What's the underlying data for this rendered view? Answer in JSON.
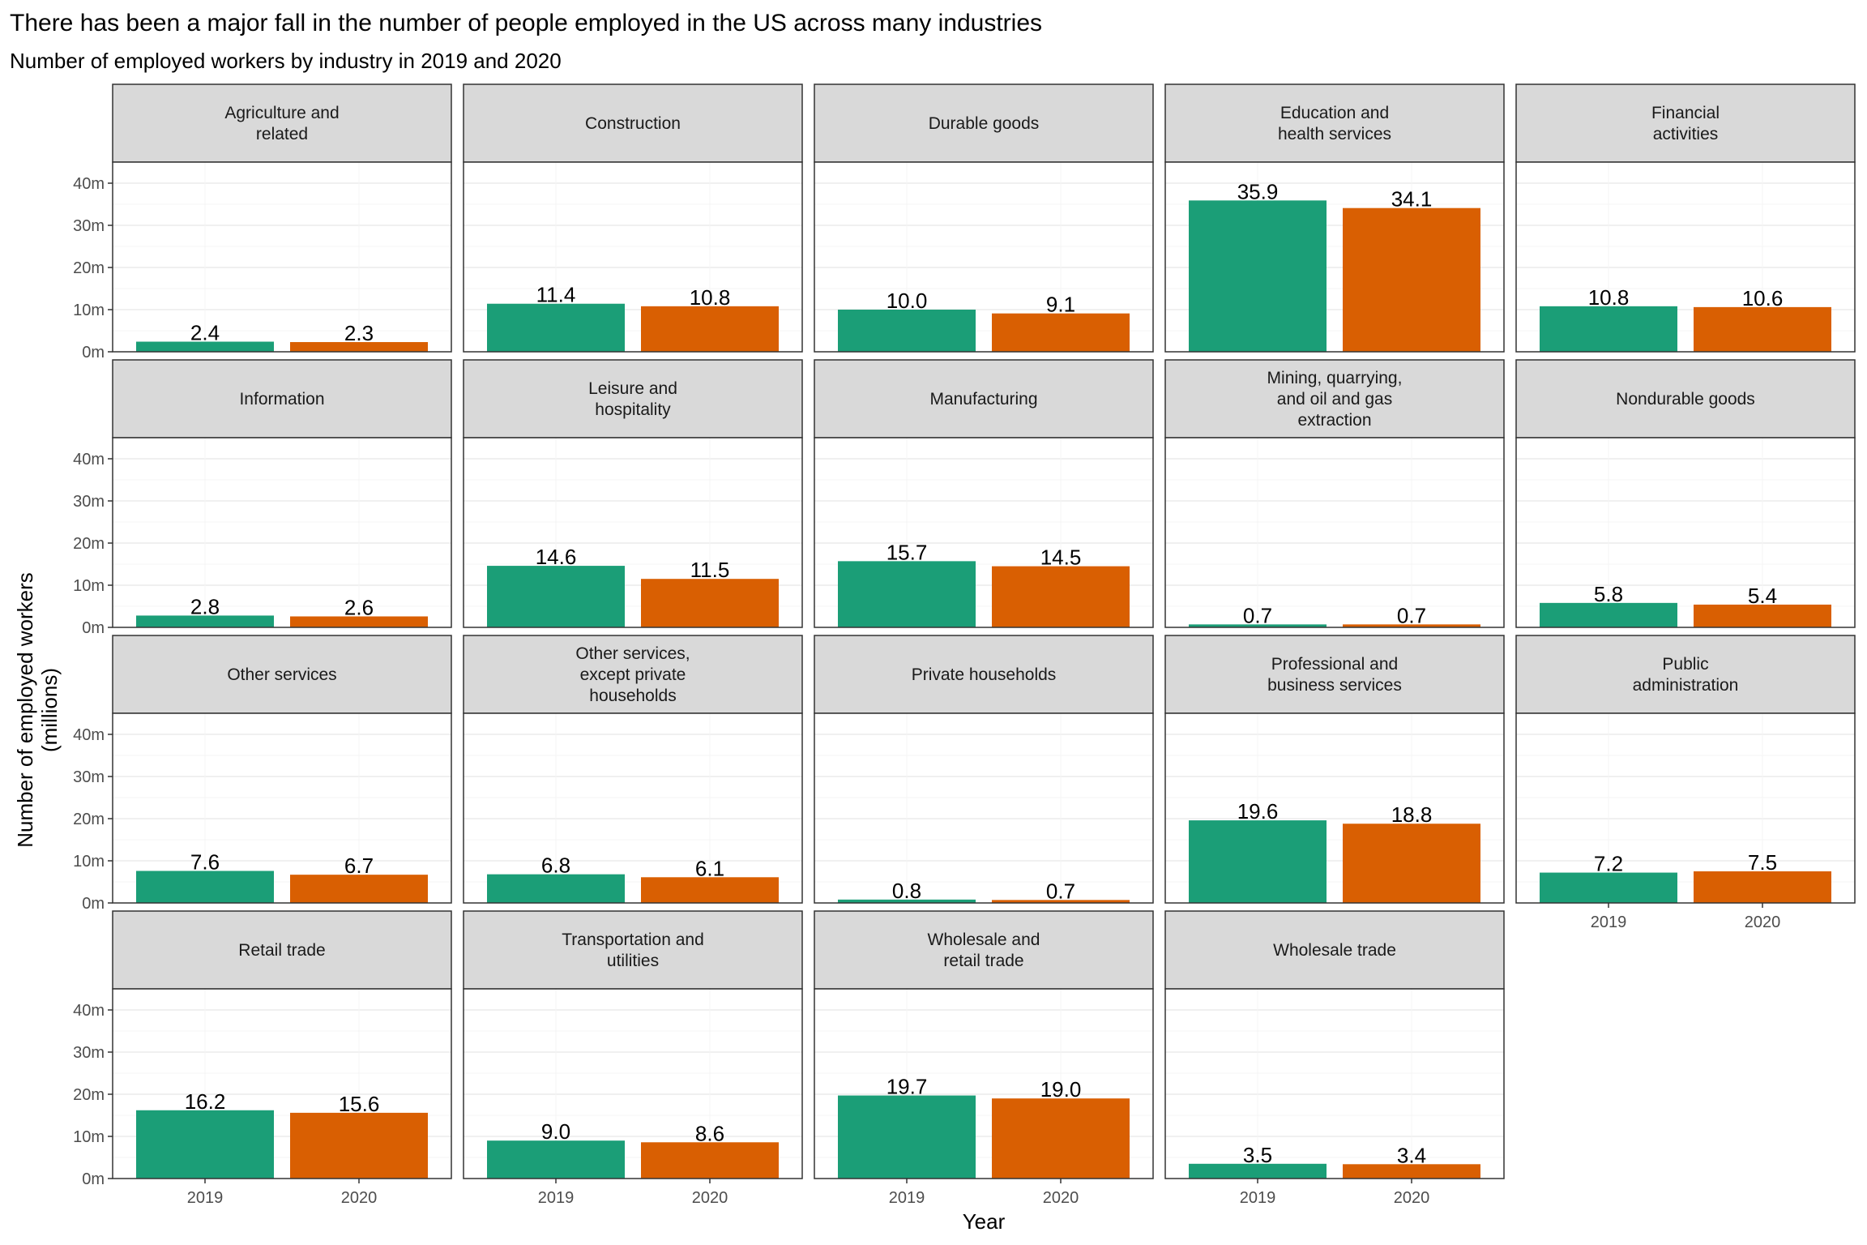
{
  "chart_data": {
    "type": "bar",
    "title": "There has been a major fall in the number of people employed in the US across many industries",
    "subtitle": "Number of employed workers by industry in 2019 and 2020",
    "xlabel": "Year",
    "ylabel": "Number of employed workers\n(millions)",
    "categories": [
      "2019",
      "2020"
    ],
    "y_ticks": [
      "0m",
      "10m",
      "20m",
      "30m",
      "40m"
    ],
    "y_tick_values": [
      0,
      10,
      20,
      30,
      40
    ],
    "ylim": [
      0,
      45
    ],
    "grid": true,
    "legend": "none",
    "colors": {
      "2019": "#1b9e77",
      "2020": "#d95f02"
    },
    "panels": [
      {
        "name": "Agriculture and\nrelated",
        "values": [
          2.4,
          2.3
        ],
        "labels": [
          "2.4",
          "2.3"
        ]
      },
      {
        "name": "Construction",
        "values": [
          11.4,
          10.8
        ],
        "labels": [
          "11.4",
          "10.8"
        ]
      },
      {
        "name": "Durable goods",
        "values": [
          10.0,
          9.1
        ],
        "labels": [
          "10.0",
          "9.1"
        ]
      },
      {
        "name": "Education and\nhealth services",
        "values": [
          35.9,
          34.1
        ],
        "labels": [
          "35.9",
          "34.1"
        ]
      },
      {
        "name": "Financial\nactivities",
        "values": [
          10.8,
          10.6
        ],
        "labels": [
          "10.8",
          "10.6"
        ]
      },
      {
        "name": "Information",
        "values": [
          2.8,
          2.6
        ],
        "labels": [
          "2.8",
          "2.6"
        ]
      },
      {
        "name": "Leisure and\nhospitality",
        "values": [
          14.6,
          11.5
        ],
        "labels": [
          "14.6",
          "11.5"
        ]
      },
      {
        "name": "Manufacturing",
        "values": [
          15.7,
          14.5
        ],
        "labels": [
          "15.7",
          "14.5"
        ]
      },
      {
        "name": "Mining, quarrying,\nand oil and gas\nextraction",
        "values": [
          0.7,
          0.7
        ],
        "labels": [
          "0.7",
          "0.7"
        ]
      },
      {
        "name": "Nondurable goods",
        "values": [
          5.8,
          5.4
        ],
        "labels": [
          "5.8",
          "5.4"
        ]
      },
      {
        "name": "Other services",
        "values": [
          7.6,
          6.7
        ],
        "labels": [
          "7.6",
          "6.7"
        ]
      },
      {
        "name": "Other services,\nexcept private\nhouseholds",
        "values": [
          6.8,
          6.1
        ],
        "labels": [
          "6.8",
          "6.1"
        ]
      },
      {
        "name": "Private households",
        "values": [
          0.8,
          0.7
        ],
        "labels": [
          "0.8",
          "0.7"
        ]
      },
      {
        "name": "Professional and\nbusiness services",
        "values": [
          19.6,
          18.8
        ],
        "labels": [
          "19.6",
          "18.8"
        ]
      },
      {
        "name": "Public\nadministration",
        "values": [
          7.2,
          7.5
        ],
        "labels": [
          "7.2",
          "7.5"
        ]
      },
      {
        "name": "Retail trade",
        "values": [
          16.2,
          15.6
        ],
        "labels": [
          "16.2",
          "15.6"
        ]
      },
      {
        "name": "Transportation and\nutilities",
        "values": [
          9.0,
          8.6
        ],
        "labels": [
          "9.0",
          "8.6"
        ]
      },
      {
        "name": "Wholesale and\nretail trade",
        "values": [
          19.7,
          19.0
        ],
        "labels": [
          "19.7",
          "19.0"
        ]
      },
      {
        "name": "Wholesale trade",
        "values": [
          3.5,
          3.4
        ],
        "labels": [
          "3.5",
          "3.4"
        ]
      }
    ]
  }
}
